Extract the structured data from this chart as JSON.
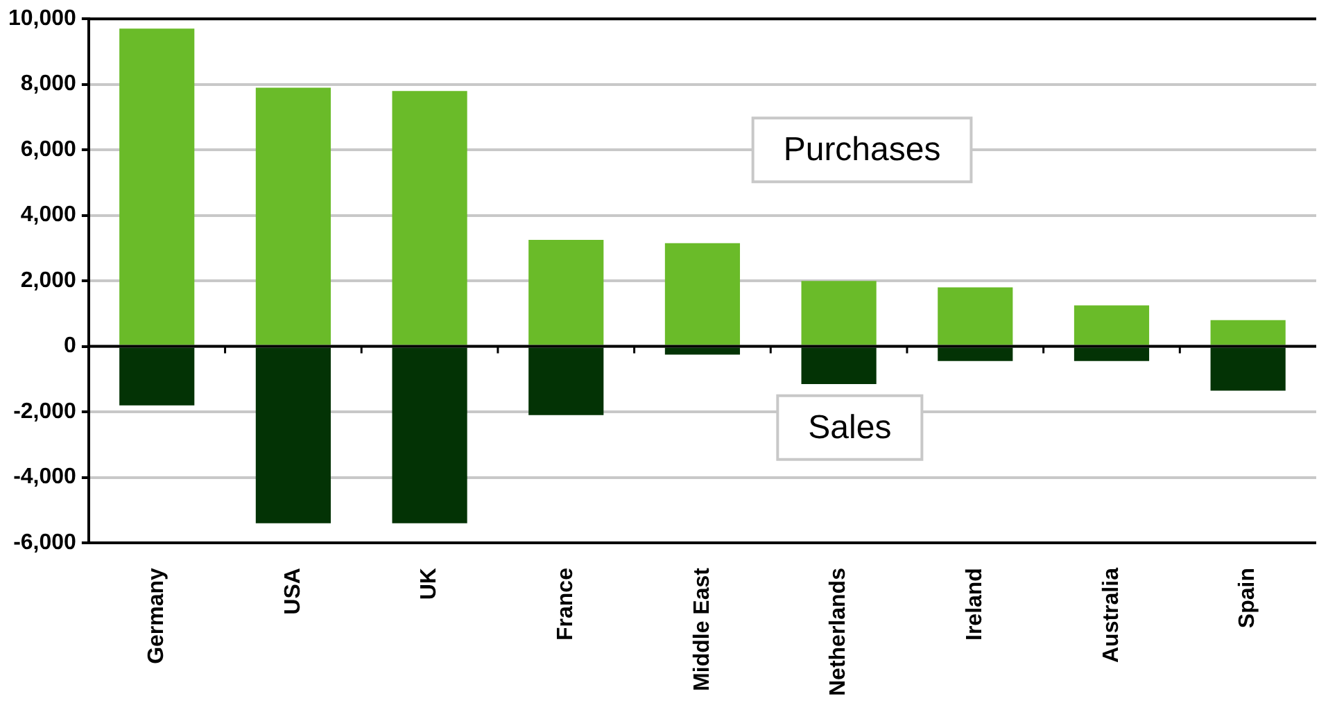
{
  "chart_data": {
    "type": "bar",
    "stacked": true,
    "categories": [
      "Germany",
      "USA",
      "UK",
      "France",
      "Middle East",
      "Netherlands",
      "Ireland",
      "Australia",
      "Spain"
    ],
    "series": [
      {
        "name": "Purchases",
        "color": "#6abb29",
        "values": [
          9700,
          7900,
          7800,
          3250,
          3150,
          2000,
          1800,
          1250,
          800
        ]
      },
      {
        "name": "Sales",
        "color": "#033305",
        "values": [
          -1800,
          -5400,
          -5400,
          -2100,
          -250,
          -1150,
          -450,
          -450,
          -1350
        ]
      }
    ],
    "ylim": [
      -6000,
      10000
    ],
    "yticks": [
      {
        "value": -6000,
        "label": "-6,000"
      },
      {
        "value": -4000,
        "label": "-4,000"
      },
      {
        "value": -2000,
        "label": "-2,000"
      },
      0,
      {
        "value": 2000,
        "label": "2,000"
      },
      {
        "value": 4000,
        "label": "4,000"
      },
      {
        "value": 6000,
        "label": "6,000"
      },
      {
        "value": 8000,
        "label": "8,000"
      },
      {
        "value": 10000,
        "label": "10,000"
      }
    ],
    "grid": "y",
    "legend": false
  }
}
